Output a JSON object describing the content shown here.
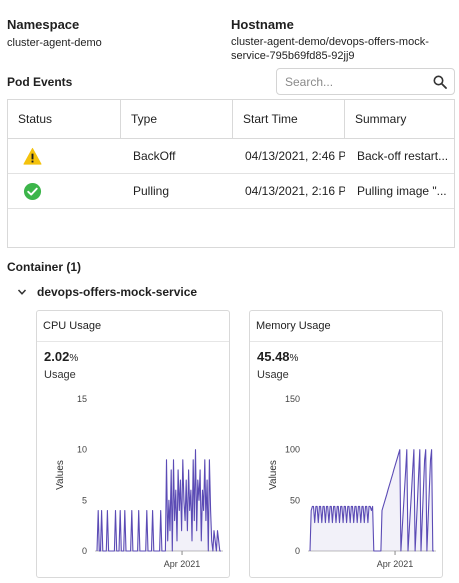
{
  "namespace": {
    "label": "Namespace",
    "value": "cluster-agent-demo"
  },
  "hostname": {
    "label": "Hostname",
    "value_line1": "cluster-agent-demo/devops-offers-mock-",
    "value_line2": "service-795b69fd85-92jj9"
  },
  "pod_events": {
    "title": "Pod Events",
    "search_placeholder": "Search...",
    "columns": [
      "Status",
      "Type",
      "Start Time",
      "Summary"
    ],
    "rows": [
      {
        "status_icon": "warning-icon",
        "type": "BackOff",
        "start_time": "04/13/2021, 2:46 P",
        "summary": "Back-off restart..."
      },
      {
        "status_icon": "check-circle-icon",
        "type": "Pulling",
        "start_time": "04/13/2021, 2:16 P",
        "summary": "Pulling image \"..."
      }
    ]
  },
  "container": {
    "title": "Container (1)",
    "name": "devops-offers-mock-service"
  },
  "colors": {
    "accent": "#5b4bb5",
    "warning": "#f4c20d",
    "success": "#3cb54a"
  },
  "chart_data": [
    {
      "type": "line",
      "title": "CPU Usage",
      "metric_value": "2.02",
      "metric_unit": "%",
      "metric_label": "Usage",
      "ylabel": "Values",
      "ylim": [
        0,
        15
      ],
      "yticks": [
        0,
        5,
        10,
        15
      ],
      "xtick_label": "Apr 2021",
      "series": [
        {
          "values": [
            0,
            4,
            0,
            0,
            4,
            0,
            0,
            0,
            0,
            4,
            0,
            0,
            0,
            0,
            0,
            0,
            4,
            0,
            0,
            0,
            4,
            0,
            0,
            0,
            4,
            0,
            0,
            0,
            0,
            0,
            4,
            0,
            0,
            0,
            0,
            0,
            4,
            0,
            0,
            0,
            0,
            0,
            0,
            4,
            0,
            0,
            0,
            0,
            4,
            0,
            0,
            0,
            0,
            0,
            0,
            4,
            0,
            0,
            0,
            0,
            9,
            1,
            5,
            2,
            8,
            0,
            9,
            3,
            6,
            1,
            8,
            4,
            7,
            2,
            9,
            5,
            3,
            7,
            2,
            8,
            4,
            6,
            1,
            9,
            3,
            10,
            2,
            7,
            5,
            8,
            1,
            6,
            4,
            9,
            3,
            7,
            0,
            9,
            4,
            1,
            0,
            2,
            1,
            0,
            2,
            1,
            0,
            0
          ]
        }
      ]
    },
    {
      "type": "line",
      "title": "Memory Usage",
      "metric_value": "45.48",
      "metric_unit": "%",
      "metric_label": "Usage",
      "ylabel": "Values",
      "ylim": [
        0,
        150
      ],
      "yticks": [
        0,
        50,
        100,
        150
      ],
      "xtick_label": "Apr 2021",
      "series": [
        {
          "values": [
            0,
            40,
            44,
            44,
            28,
            44,
            44,
            28,
            44,
            44,
            28,
            44,
            44,
            28,
            44,
            44,
            28,
            44,
            44,
            28,
            44,
            44,
            28,
            44,
            44,
            28,
            44,
            44,
            28,
            44,
            44,
            28,
            44,
            44,
            28,
            44,
            44,
            28,
            44,
            44,
            28,
            44,
            44,
            28,
            44,
            44,
            28,
            44,
            44,
            28,
            44,
            44,
            40,
            44,
            0,
            0,
            0,
            0,
            0,
            0,
            0,
            40,
            44,
            48,
            52,
            56,
            60,
            64,
            68,
            72,
            76,
            80,
            84,
            88,
            92,
            96,
            100,
            0,
            20,
            40,
            60,
            80,
            100,
            0,
            20,
            40,
            60,
            80,
            100,
            0,
            25,
            50,
            75,
            100,
            0,
            30,
            60,
            90,
            100,
            0,
            30,
            60,
            90,
            100,
            0,
            0
          ]
        }
      ]
    }
  ]
}
